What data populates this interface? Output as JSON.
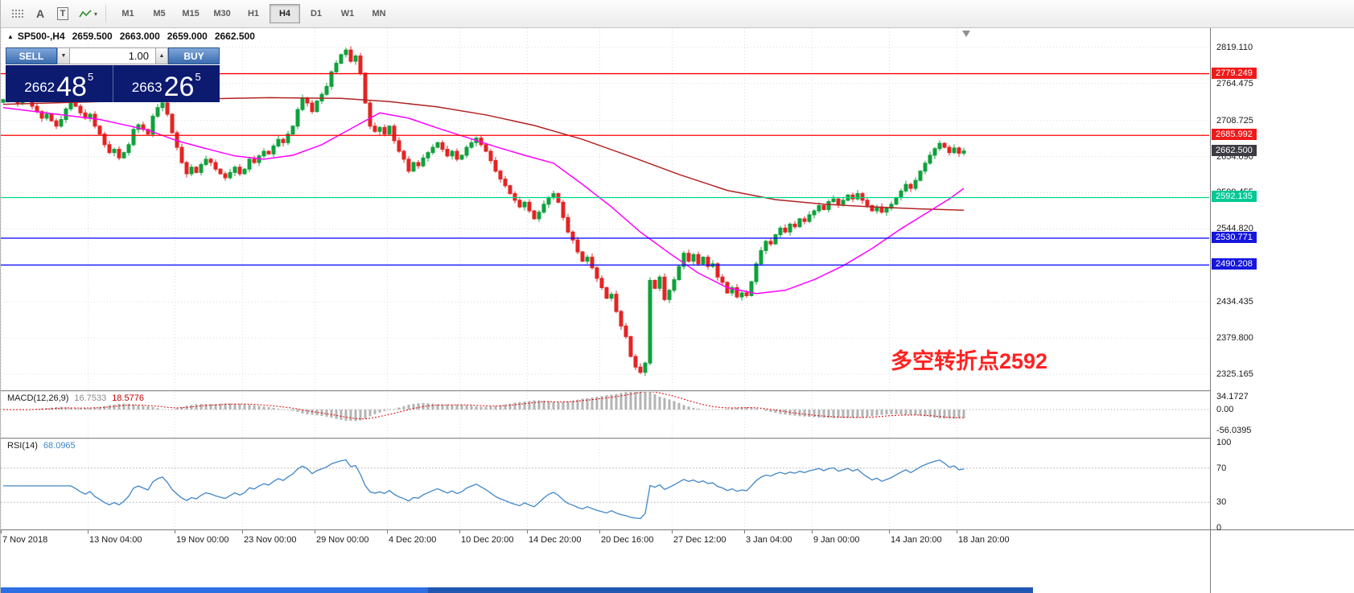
{
  "toolbar": {
    "icons": [
      {
        "name": "chart-objects-icon"
      },
      {
        "name": "text-a-icon",
        "glyph": "A"
      },
      {
        "name": "text-frame-icon",
        "glyph": "T"
      },
      {
        "name": "indicators-icon",
        "dropdown_glyph": "▾"
      }
    ],
    "timeframes": [
      {
        "label": "M1",
        "active": false
      },
      {
        "label": "M5",
        "active": false
      },
      {
        "label": "M15",
        "active": false
      },
      {
        "label": "M30",
        "active": false
      },
      {
        "label": "H1",
        "active": false
      },
      {
        "label": "H4",
        "active": true
      },
      {
        "label": "D1",
        "active": false
      },
      {
        "label": "W1",
        "active": false
      },
      {
        "label": "MN",
        "active": false
      }
    ]
  },
  "symbol_header": {
    "marker": "▲",
    "symbol": "SP500-,H4",
    "open": "2659.500",
    "high": "2663.000",
    "low": "2659.000",
    "close": "2662.500"
  },
  "trade_panel": {
    "sell_label": "SELL",
    "buy_label": "BUY",
    "volume": "1.00",
    "volume_dropdown_glyph": "▼",
    "volume_up_glyph": "▲",
    "sell_price": {
      "prefix": "2662",
      "big": "48",
      "sup": "5"
    },
    "buy_price": {
      "prefix": "2663",
      "big": "26",
      "sup": "5"
    }
  },
  "annotation": {
    "text": "多空转折点2592",
    "color": "#ff2222"
  },
  "price_axis": {
    "ticks": [
      "2819.110",
      "2764.475",
      "2708.725",
      "2654.090",
      "2599.455",
      "2544.820",
      "2434.435",
      "2379.800",
      "2325.165"
    ],
    "current_price": {
      "text": "2662.500",
      "bg": "#3c3c44",
      "fg": "#ffffff"
    },
    "line_labels": [
      {
        "text": "2779.249",
        "bg": "#ee1a1a",
        "price": 2779.249
      },
      {
        "text": "2685.992",
        "bg": "#ee1a1a",
        "price": 2685.992
      },
      {
        "text": "2592.135",
        "bg": "#00c896",
        "price": 2592.135
      },
      {
        "text": "2530.771",
        "bg": "#1616dd",
        "price": 2530.771
      },
      {
        "text": "2490.208",
        "bg": "#1616dd",
        "price": 2490.208
      }
    ]
  },
  "macd_panel": {
    "name": "MACD(12,26,9)",
    "value_main": "16.7533",
    "value_signal": "18.5776",
    "axis_ticks": [
      "34.1727",
      "0.00",
      "-56.0395"
    ]
  },
  "rsi_panel": {
    "name": "RSI(14)",
    "value": "68.0965",
    "axis_ticks": [
      "100",
      "70",
      "30",
      "0"
    ]
  },
  "chart_data": {
    "type": "candlestick",
    "symbol": "SP500-",
    "timeframe": "H4",
    "title": "SP500-,H4",
    "ylim": [
      2301,
      2848
    ],
    "y_ticks": [
      2819.11,
      2764.475,
      2708.725,
      2654.09,
      2599.455,
      2544.82,
      2434.435,
      2379.8,
      2325.165
    ],
    "ohlc_current": {
      "open": 2659.5,
      "high": 2663.0,
      "low": 2659.0,
      "close": 2662.5
    },
    "up_color": "#0fa13c",
    "down_color": "#e32424",
    "closes": [
      2740,
      2748,
      2742,
      2735,
      2744,
      2738,
      2730,
      2722,
      2712,
      2718,
      2708,
      2700,
      2710,
      2726,
      2738,
      2730,
      2720,
      2712,
      2718,
      2700,
      2688,
      2672,
      2660,
      2665,
      2652,
      2660,
      2672,
      2695,
      2702,
      2695,
      2688,
      2715,
      2728,
      2735,
      2718,
      2690,
      2668,
      2645,
      2628,
      2638,
      2630,
      2642,
      2650,
      2645,
      2635,
      2628,
      2622,
      2630,
      2638,
      2628,
      2635,
      2650,
      2645,
      2655,
      2662,
      2658,
      2670,
      2680,
      2675,
      2688,
      2700,
      2725,
      2742,
      2735,
      2722,
      2738,
      2748,
      2760,
      2782,
      2795,
      2808,
      2815,
      2798,
      2806,
      2780,
      2735,
      2700,
      2692,
      2698,
      2688,
      2700,
      2678,
      2662,
      2650,
      2632,
      2645,
      2640,
      2652,
      2660,
      2668,
      2675,
      2665,
      2655,
      2662,
      2650,
      2656,
      2668,
      2675,
      2682,
      2672,
      2662,
      2648,
      2632,
      2620,
      2610,
      2598,
      2588,
      2578,
      2585,
      2572,
      2560,
      2570,
      2582,
      2592,
      2598,
      2585,
      2562,
      2540,
      2528,
      2510,
      2496,
      2502,
      2486,
      2470,
      2456,
      2440,
      2446,
      2420,
      2398,
      2382,
      2352,
      2336,
      2328,
      2342,
      2467,
      2455,
      2472,
      2438,
      2452,
      2468,
      2488,
      2508,
      2496,
      2506,
      2492,
      2502,
      2488,
      2492,
      2472,
      2464,
      2448,
      2456,
      2442,
      2448,
      2444,
      2465,
      2492,
      2512,
      2526,
      2522,
      2536,
      2546,
      2540,
      2552,
      2548,
      2560,
      2556,
      2566,
      2572,
      2580,
      2574,
      2586,
      2590,
      2582,
      2588,
      2596,
      2590,
      2598,
      2588,
      2580,
      2572,
      2578,
      2570,
      2576,
      2582,
      2592,
      2602,
      2612,
      2606,
      2618,
      2632,
      2644,
      2656,
      2666,
      2674,
      2668,
      2660,
      2667,
      2659,
      2662.5
    ],
    "hlines": [
      {
        "price": 2779.249,
        "color": "#ff0000"
      },
      {
        "price": 2685.992,
        "color": "#ff0000"
      },
      {
        "price": 2592.135,
        "color": "#00d884"
      },
      {
        "price": 2530.771,
        "color": "#0000ff"
      },
      {
        "price": 2490.208,
        "color": "#0000ff"
      }
    ],
    "ma_lines": [
      {
        "name": "ma-slow-darkred",
        "color": "#b22222",
        "points": [
          [
            0,
            2733
          ],
          [
            20,
            2737
          ],
          [
            40,
            2741
          ],
          [
            55,
            2743
          ],
          [
            70,
            2742
          ],
          [
            80,
            2737
          ],
          [
            90,
            2729
          ],
          [
            100,
            2717
          ],
          [
            110,
            2701
          ],
          [
            120,
            2680
          ],
          [
            130,
            2654
          ],
          [
            140,
            2627
          ],
          [
            150,
            2603
          ],
          [
            160,
            2589
          ],
          [
            170,
            2582
          ],
          [
            180,
            2578
          ],
          [
            190,
            2575
          ],
          [
            199,
            2573
          ]
        ]
      },
      {
        "name": "ma-fast-magenta",
        "color": "#ff00ff",
        "points": [
          [
            0,
            2728
          ],
          [
            10,
            2719
          ],
          [
            20,
            2710
          ],
          [
            30,
            2694
          ],
          [
            36,
            2678
          ],
          [
            42,
            2666
          ],
          [
            48,
            2655
          ],
          [
            54,
            2650
          ],
          [
            60,
            2656
          ],
          [
            66,
            2672
          ],
          [
            72,
            2696
          ],
          [
            78,
            2720
          ],
          [
            84,
            2712
          ],
          [
            90,
            2697
          ],
          [
            96,
            2683
          ],
          [
            102,
            2669
          ],
          [
            108,
            2656
          ],
          [
            114,
            2644
          ],
          [
            120,
            2612
          ],
          [
            126,
            2578
          ],
          [
            132,
            2540
          ],
          [
            138,
            2508
          ],
          [
            144,
            2478
          ],
          [
            150,
            2456
          ],
          [
            156,
            2447
          ],
          [
            162,
            2452
          ],
          [
            168,
            2468
          ],
          [
            174,
            2489
          ],
          [
            180,
            2515
          ],
          [
            186,
            2545
          ],
          [
            192,
            2572
          ],
          [
            196,
            2590
          ],
          [
            199,
            2606
          ]
        ]
      }
    ],
    "time_axis": [
      {
        "label": "7 Nov 2018",
        "i": 0
      },
      {
        "label": "13 Nov 04:00",
        "i": 18
      },
      {
        "label": "19 Nov 00:00",
        "i": 36
      },
      {
        "label": "23 Nov 00:00",
        "i": 50
      },
      {
        "label": "29 Nov 00:00",
        "i": 65
      },
      {
        "label": "4 Dec 20:00",
        "i": 80
      },
      {
        "label": "10 Dec 20:00",
        "i": 95
      },
      {
        "label": "14 Dec 20:00",
        "i": 109
      },
      {
        "label": "20 Dec 16:00",
        "i": 124
      },
      {
        "label": "27 Dec 12:00",
        "i": 139
      },
      {
        "label": "3 Jan 04:00",
        "i": 154
      },
      {
        "label": "9 Jan 00:00",
        "i": 168
      },
      {
        "label": "14 Jan 20:00",
        "i": 184
      },
      {
        "label": "18 Jan 20:00",
        "i": 198
      }
    ],
    "macd": {
      "type": "histogram+line",
      "params": [
        12,
        26,
        9
      ],
      "current_main": 16.7533,
      "current_signal": 18.5776,
      "axis": [
        34.1727,
        0.0,
        -56.0395
      ],
      "histogram_color": "#b3b3b3",
      "signal_color": "#e00000"
    },
    "rsi": {
      "type": "line",
      "period": 14,
      "current": 68.0965,
      "levels": [
        70,
        30
      ],
      "range": [
        0,
        100
      ],
      "color": "#4086c8"
    }
  }
}
